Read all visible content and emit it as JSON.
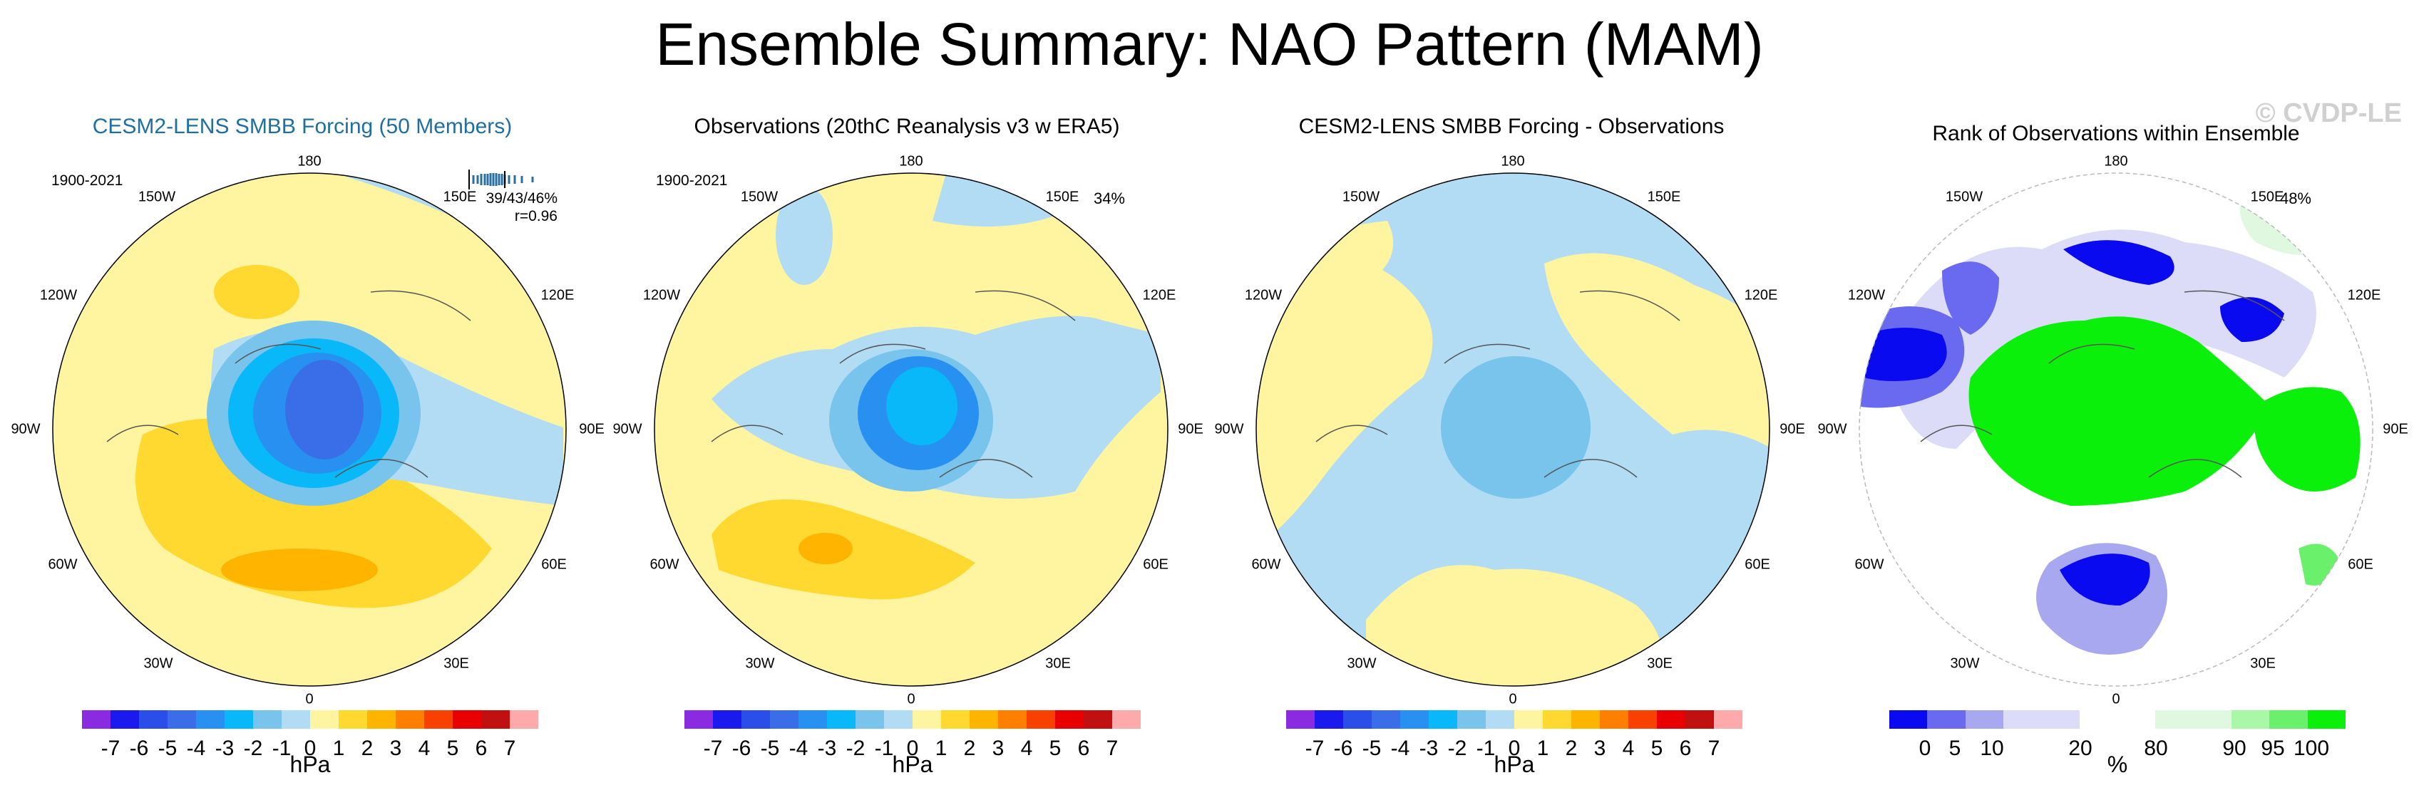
{
  "title": "Ensemble Summary: NAO Pattern (MAM)",
  "watermark": "© CVDP-LE",
  "panels": [
    {
      "title": "CESM2-LENS SMBB Forcing (50 Members)",
      "period": "1900-2021",
      "stats_pct": "39/43/46%",
      "stats_r": "r=0.96",
      "colorbar_labels": [
        "-7",
        "-6",
        "-5",
        "-4",
        "-3",
        "-2",
        "-1",
        "0",
        "1",
        "2",
        "3",
        "4",
        "5",
        "6",
        "7"
      ],
      "units": "hPa"
    },
    {
      "title": "Observations (20thC Reanalysis v3 w ERA5)",
      "period": "1900-2021",
      "percent": "34%",
      "colorbar_labels": [
        "-7",
        "-6",
        "-5",
        "-4",
        "-3",
        "-2",
        "-1",
        "0",
        "1",
        "2",
        "3",
        "4",
        "5",
        "6",
        "7"
      ],
      "units": "hPa"
    },
    {
      "title": "CESM2-LENS SMBB Forcing - Observations",
      "colorbar_labels": [
        "-7",
        "-6",
        "-5",
        "-4",
        "-3",
        "-2",
        "-1",
        "0",
        "1",
        "2",
        "3",
        "4",
        "5",
        "6",
        "7"
      ],
      "units": "hPa"
    },
    {
      "title": "Rank of Observations within Ensemble",
      "percent": "48%",
      "colorbar_labels": [
        "0",
        "5",
        "10",
        "20",
        "80",
        "90",
        "95",
        "100"
      ],
      "units": "%"
    }
  ],
  "longitude_labels": {
    "top": "180",
    "bottom": "0",
    "l150": "150W",
    "l120": "120W",
    "l90": "90W",
    "l60": "60W",
    "l30": "30W",
    "r150": "150E",
    "r120": "120E",
    "r90": "90E",
    "r60": "60E",
    "r30": "30E"
  },
  "colors": {
    "hpa_scale": [
      "#8a2be2",
      "#1a1aee",
      "#2a4ee8",
      "#3a6ee8",
      "#2890f0",
      "#08b8f8",
      "#78c4ec",
      "#b2dcf4",
      "#fff5a0",
      "#ffd830",
      "#ffb400",
      "#ff8000",
      "#f84000",
      "#e80000",
      "#c01010",
      "#ffaaaa"
    ],
    "rank_scale": [
      "#0a0af0",
      "#6a6af0",
      "#a8a8f0",
      "#dcdcf8",
      "#ffffff",
      "#ffffff",
      "#e0f8e0",
      "#a8f8a8",
      "#6af06a",
      "#0af00a"
    ]
  }
}
